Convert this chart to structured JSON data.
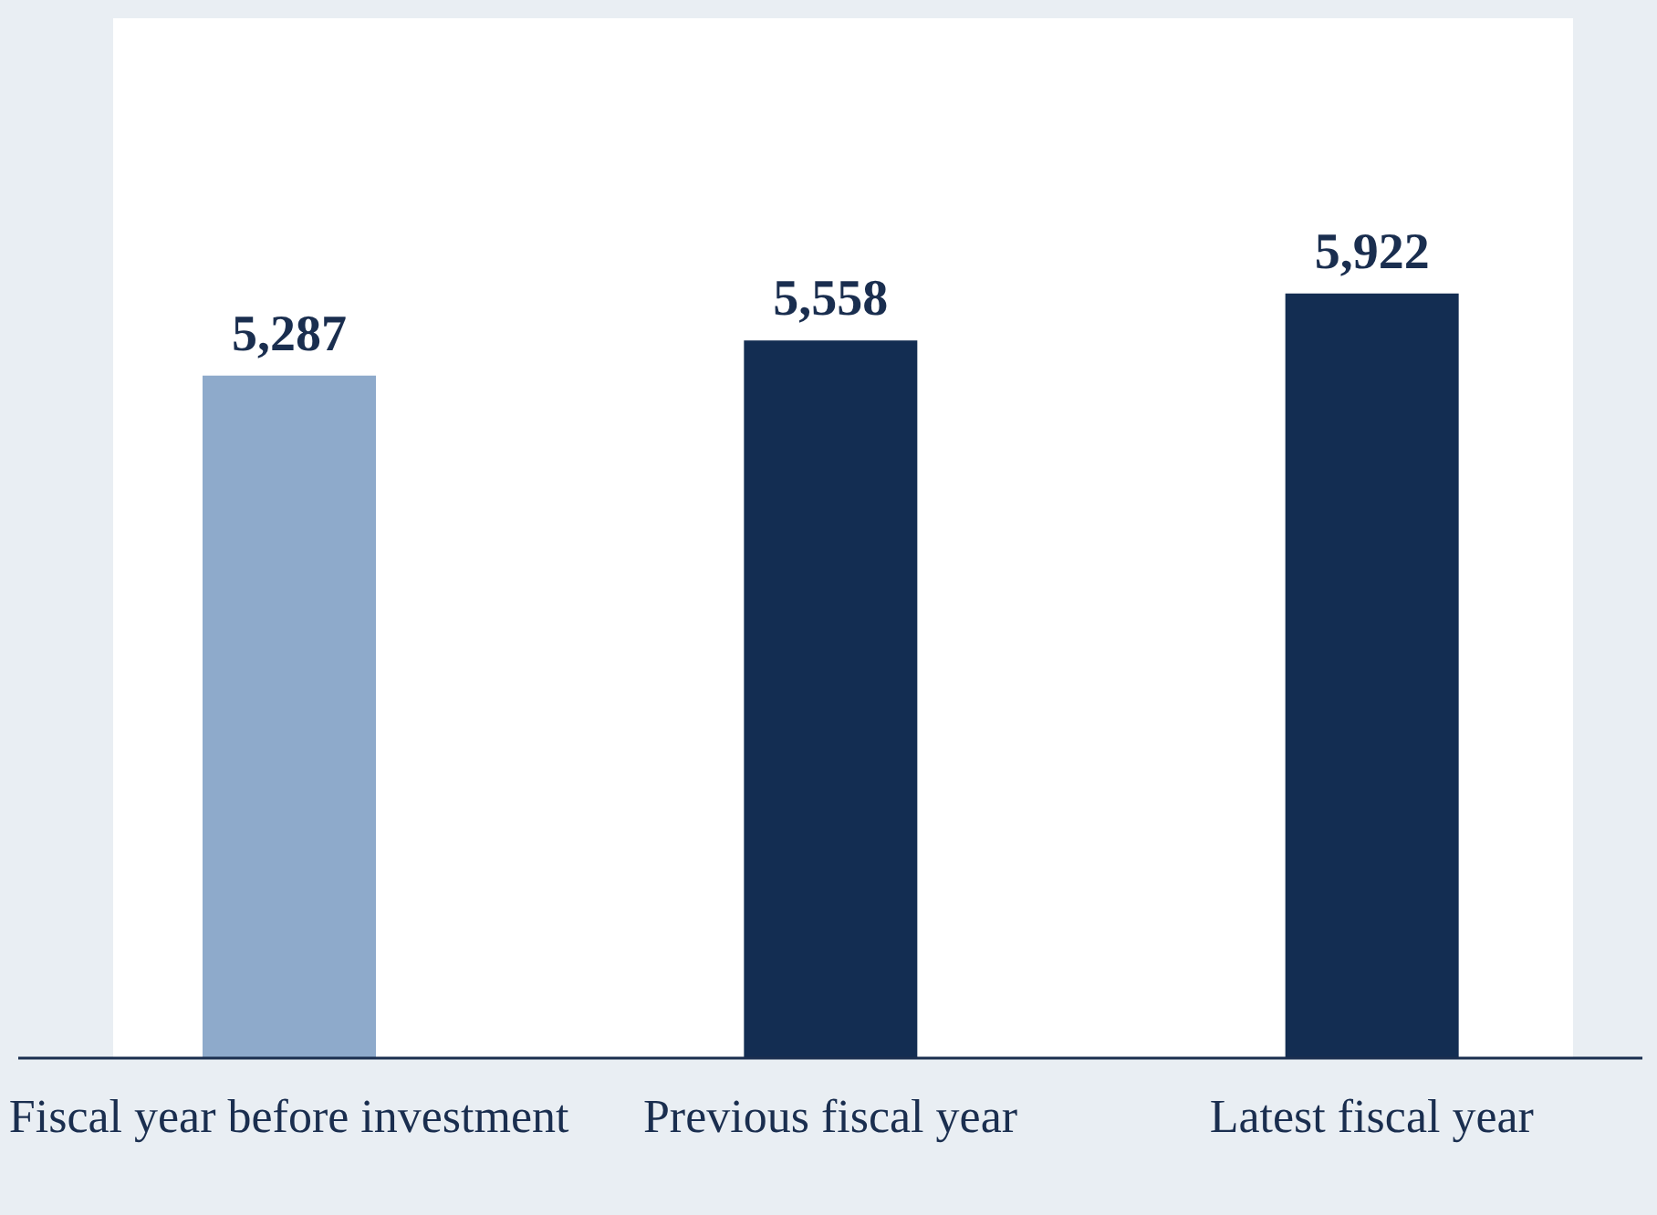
{
  "chart_data": {
    "type": "bar",
    "categories": [
      "Fiscal year before investment",
      "Previous fiscal year",
      "Latest fiscal year"
    ],
    "values": [
      5287,
      5558,
      5922
    ],
    "colors": [
      "#8eaacb",
      "#132d52",
      "#132d52"
    ],
    "value_labels": [
      "5,287",
      "5,558",
      "5,922"
    ],
    "grid": false,
    "legend": false
  }
}
